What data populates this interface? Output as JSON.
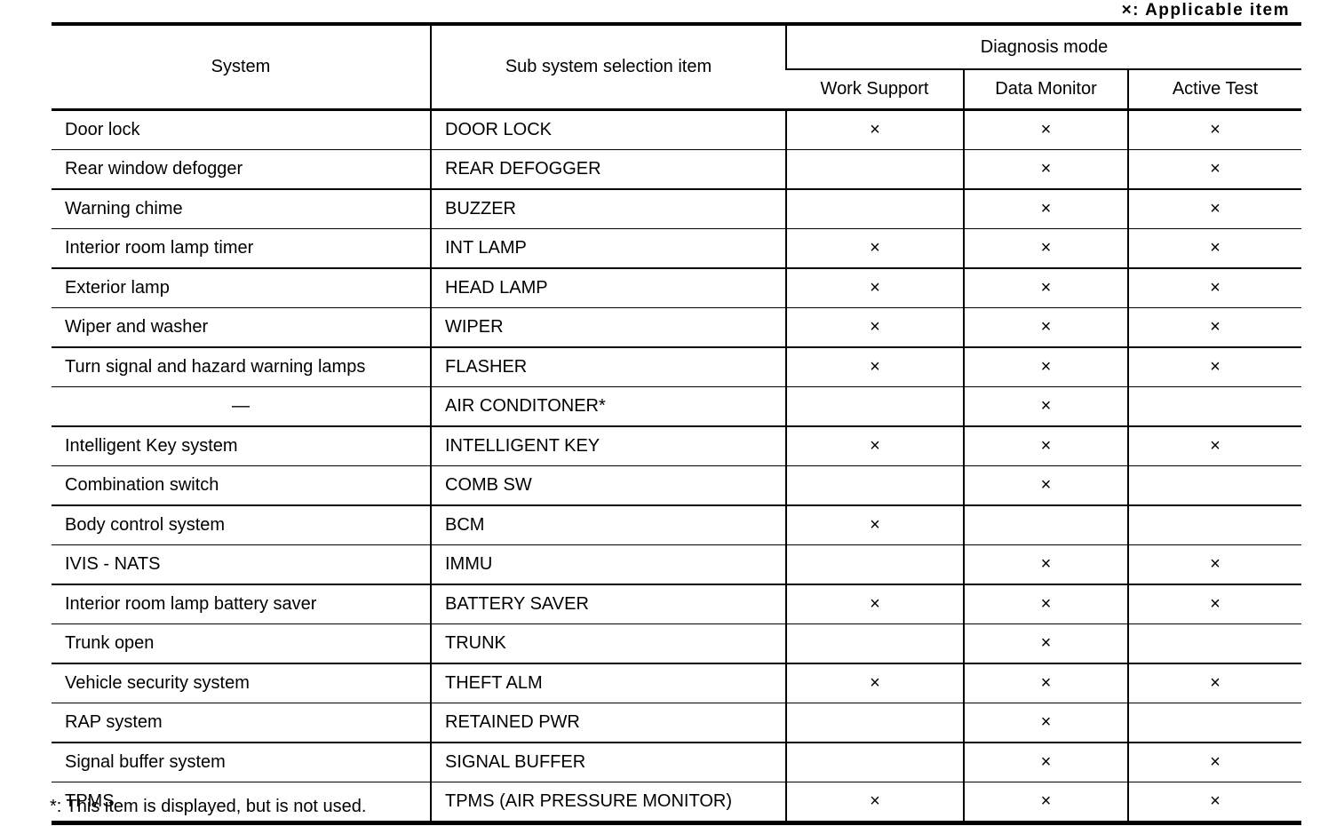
{
  "note_top": "×: Applicable item",
  "footnote": "*: This item is displayed, but is not used.",
  "table": {
    "headers": {
      "system": "System",
      "sub_system": "Sub system selection item",
      "diagnosis_mode": "Diagnosis mode",
      "work_support": "Work Support",
      "data_monitor": "Data Monitor",
      "active_test": "Active Test"
    },
    "mark": "×",
    "rows": [
      {
        "system": "Door lock",
        "sub_item": "DOOR LOCK",
        "work_support": "×",
        "data_monitor": "×",
        "active_test": "×"
      },
      {
        "system": "Rear window defogger",
        "sub_item": "REAR DEFOGGER",
        "work_support": "",
        "data_monitor": "×",
        "active_test": "×"
      },
      {
        "system": "Warning chime",
        "sub_item": "BUZZER",
        "work_support": "",
        "data_monitor": "×",
        "active_test": "×"
      },
      {
        "system": "Interior room lamp timer",
        "sub_item": "INT LAMP",
        "work_support": "×",
        "data_monitor": "×",
        "active_test": "×"
      },
      {
        "system": "Exterior lamp",
        "sub_item": "HEAD LAMP",
        "work_support": "×",
        "data_monitor": "×",
        "active_test": "×"
      },
      {
        "system": "Wiper and washer",
        "sub_item": "WIPER",
        "work_support": "×",
        "data_monitor": "×",
        "active_test": "×"
      },
      {
        "system": "Turn signal and hazard warning lamps",
        "sub_item": "FLASHER",
        "work_support": "×",
        "data_monitor": "×",
        "active_test": "×"
      },
      {
        "system": "—",
        "sub_item": "AIR CONDITONER*",
        "work_support": "",
        "data_monitor": "×",
        "active_test": ""
      },
      {
        "system": "Intelligent Key system",
        "sub_item": "INTELLIGENT KEY",
        "work_support": "×",
        "data_monitor": "×",
        "active_test": "×"
      },
      {
        "system": "Combination switch",
        "sub_item": "COMB SW",
        "work_support": "",
        "data_monitor": "×",
        "active_test": ""
      },
      {
        "system": "Body control system",
        "sub_item": "BCM",
        "work_support": "×",
        "data_monitor": "",
        "active_test": ""
      },
      {
        "system": "IVIS - NATS",
        "sub_item": "IMMU",
        "work_support": "",
        "data_monitor": "×",
        "active_test": "×"
      },
      {
        "system": "Interior room lamp battery saver",
        "sub_item": "BATTERY SAVER",
        "work_support": "×",
        "data_monitor": "×",
        "active_test": "×"
      },
      {
        "system": "Trunk open",
        "sub_item": "TRUNK",
        "work_support": "",
        "data_monitor": "×",
        "active_test": ""
      },
      {
        "system": "Vehicle security system",
        "sub_item": "THEFT ALM",
        "work_support": "×",
        "data_monitor": "×",
        "active_test": "×"
      },
      {
        "system": "RAP system",
        "sub_item": "RETAINED PWR",
        "work_support": "",
        "data_monitor": "×",
        "active_test": ""
      },
      {
        "system": "Signal buffer system",
        "sub_item": "SIGNAL BUFFER",
        "work_support": "",
        "data_monitor": "×",
        "active_test": "×"
      },
      {
        "system": "TPMS",
        "sub_item": "TPMS (AIR PRESSURE MONITOR)",
        "work_support": "×",
        "data_monitor": "×",
        "active_test": "×"
      }
    ]
  }
}
